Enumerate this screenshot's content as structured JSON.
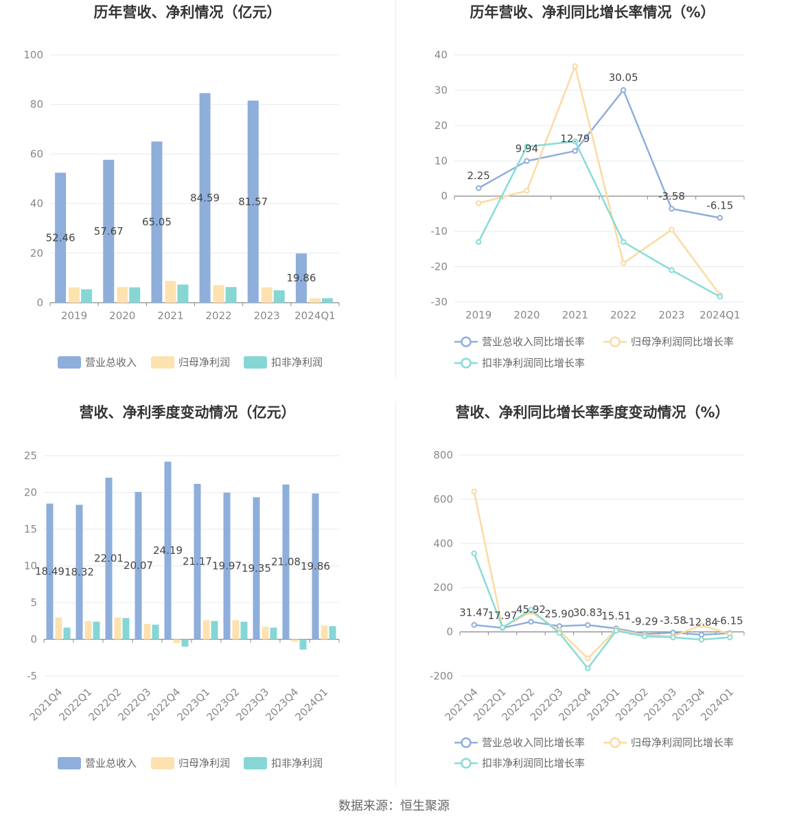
{
  "source": "数据来源：恒生聚源",
  "colors": {
    "revenue": "#8eaedb",
    "net_profit": "#fde2b0",
    "deducted_profit": "#86d6d6",
    "revenue_line": "#8eaedb",
    "net_profit_line": "#fdd9a0",
    "deducted_line": "#86dcd6",
    "grid": "#e6e9f0",
    "axis": "#888888"
  },
  "chart_data": [
    {
      "id": "annual-bars",
      "type": "bar",
      "title": "历年营收、净利情况（亿元）",
      "categories": [
        "2019",
        "2020",
        "2021",
        "2022",
        "2023",
        "2024Q1"
      ],
      "ylim": [
        0,
        100
      ],
      "yticks": [
        0,
        20,
        40,
        60,
        80,
        100
      ],
      "grid": true,
      "legend": "bottom",
      "series": [
        {
          "name": "营业总收入",
          "values": [
            52.46,
            57.67,
            65.05,
            84.59,
            81.57,
            19.86
          ],
          "labels": [
            "52.46",
            "57.67",
            "65.05",
            "84.59",
            "81.57",
            "19.86"
          ]
        },
        {
          "name": "归母净利润",
          "values": [
            6.2,
            6.3,
            8.8,
            7.1,
            6.2,
            1.8
          ]
        },
        {
          "name": "扣非净利润",
          "values": [
            5.4,
            6.2,
            7.3,
            6.3,
            5.0,
            1.8
          ]
        }
      ]
    },
    {
      "id": "annual-growth",
      "type": "line",
      "title": "历年营收、净利同比增长率情况（%）",
      "categories": [
        "2019",
        "2020",
        "2021",
        "2022",
        "2023",
        "2024Q1"
      ],
      "ylim": [
        -30,
        40
      ],
      "yticks": [
        -30,
        -20,
        -10,
        0,
        10,
        20,
        30,
        40
      ],
      "grid": true,
      "legend": "bottom",
      "series": [
        {
          "name": "营业总收入同比增长率",
          "values": [
            2.25,
            9.94,
            12.79,
            30.05,
            -3.58,
            -6.15
          ],
          "labels": [
            "2.25",
            "9.94",
            "12.79",
            "30.05",
            "-3.58",
            "-6.15"
          ]
        },
        {
          "name": "归母净利润同比增长率",
          "values": [
            -2.0,
            1.5,
            36.8,
            -19.0,
            -9.5,
            -28.0
          ]
        },
        {
          "name": "扣非净利润同比增长率",
          "values": [
            -13.0,
            14.0,
            15.5,
            -13.0,
            -21.0,
            -28.5
          ]
        }
      ]
    },
    {
      "id": "quarterly-bars",
      "type": "bar",
      "title": "营收、净利季度变动情况（亿元）",
      "categories": [
        "2021Q4",
        "2022Q1",
        "2022Q2",
        "2022Q3",
        "2022Q4",
        "2023Q1",
        "2023Q2",
        "2023Q3",
        "2023Q4",
        "2024Q1"
      ],
      "ylim": [
        -5,
        25
      ],
      "yticks": [
        -5,
        0,
        5,
        10,
        15,
        20,
        25
      ],
      "grid": true,
      "legend": "bottom",
      "series": [
        {
          "name": "营业总收入",
          "values": [
            18.49,
            18.32,
            22.01,
            20.07,
            24.19,
            21.17,
            19.97,
            19.35,
            21.08,
            19.86
          ],
          "labels": [
            "18.49",
            "18.32",
            "22.01",
            "20.07",
            "24.19",
            "21.17",
            "19.97",
            "19.35",
            "21.08",
            "19.86"
          ]
        },
        {
          "name": "归母净利润",
          "values": [
            3.0,
            2.5,
            3.0,
            2.1,
            -0.5,
            2.6,
            2.6,
            1.7,
            -0.3,
            1.9
          ]
        },
        {
          "name": "扣非净利润",
          "values": [
            1.6,
            2.4,
            2.9,
            2.0,
            -1.0,
            2.5,
            2.4,
            1.6,
            -1.4,
            1.8
          ]
        }
      ]
    },
    {
      "id": "quarterly-growth",
      "type": "line",
      "title": "营收、净利同比增长率季度变动情况（%）",
      "categories": [
        "2021Q4",
        "2022Q1",
        "2022Q2",
        "2022Q3",
        "2022Q4",
        "2023Q1",
        "2023Q2",
        "2023Q3",
        "2023Q4",
        "2024Q1"
      ],
      "ylim": [
        -200,
        800
      ],
      "yticks": [
        -200,
        0,
        200,
        400,
        600,
        800
      ],
      "grid": true,
      "legend": "bottom",
      "series": [
        {
          "name": "营业总收入同比增长率",
          "values": [
            31.47,
            17.97,
            45.92,
            25.9,
            30.83,
            15.51,
            -9.29,
            -3.58,
            -12.84,
            -6.15
          ],
          "labels": [
            "31.47",
            "17.97",
            "45.92",
            "25.90",
            "30.83",
            "15.51",
            "-9.29",
            "-3.58",
            "-12.84",
            "-6.15"
          ]
        },
        {
          "name": "归母净利润同比增长率",
          "values": [
            635,
            20,
            90,
            5,
            -120,
            10,
            -15,
            -20,
            30,
            -10
          ]
        },
        {
          "name": "扣非净利润同比增长率",
          "values": [
            355,
            20,
            100,
            -5,
            -165,
            5,
            -20,
            -25,
            -35,
            -25
          ]
        }
      ]
    }
  ]
}
